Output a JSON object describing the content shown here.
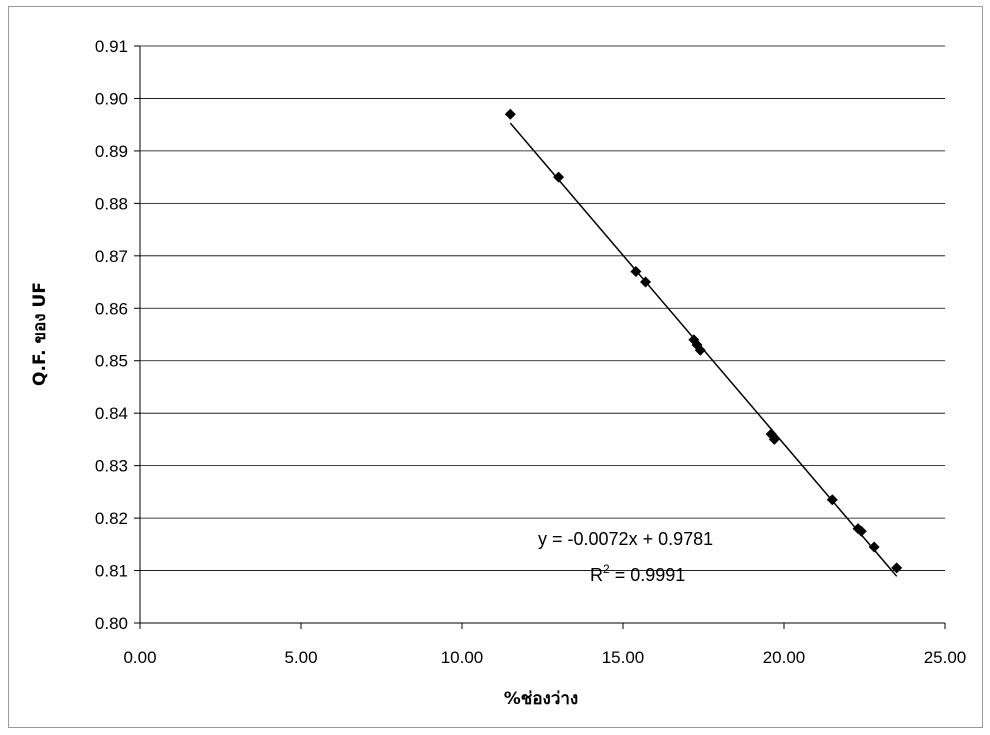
{
  "chart_data": {
    "type": "scatter",
    "title": "",
    "xlabel": "%ช่องว่าง",
    "ylabel": "Q.F. ของ UF",
    "xlim": [
      0,
      25
    ],
    "ylim": [
      0.8,
      0.91
    ],
    "x_ticks": [
      "0.00",
      "5.00",
      "10.00",
      "15.00",
      "20.00",
      "25.00"
    ],
    "y_ticks": [
      "0.80",
      "0.81",
      "0.82",
      "0.83",
      "0.84",
      "0.85",
      "0.86",
      "0.87",
      "0.88",
      "0.89",
      "0.90",
      "0.91"
    ],
    "grid": "horizontal",
    "legend": "none",
    "marker_color": "#000000",
    "series": [
      {
        "x": [
          11.5,
          13.0,
          15.4,
          15.7,
          17.2,
          17.3,
          17.4,
          19.6,
          19.7,
          21.5,
          22.3,
          22.4,
          22.8,
          23.5
        ],
        "y": [
          0.897,
          0.885,
          0.867,
          0.865,
          0.854,
          0.853,
          0.852,
          0.836,
          0.835,
          0.8235,
          0.818,
          0.8175,
          0.8145,
          0.8105
        ]
      }
    ],
    "trendline": {
      "type": "linear",
      "slope": -0.0072,
      "intercept": 0.9781,
      "x_range": [
        11.5,
        23.5
      ]
    },
    "annotations": {
      "equation": "y = -0.0072x + 0.9781",
      "r2_prefix": "R",
      "r2_sup": "2",
      "r2_value": " = 0.9991"
    }
  }
}
